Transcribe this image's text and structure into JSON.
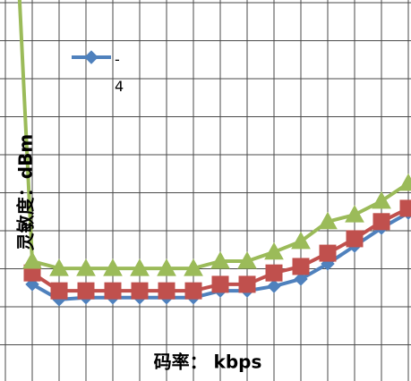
{
  "chart_data": {
    "type": "line",
    "x_label": "码率： kbps",
    "y_label": "灵敏度：dBm",
    "x": [
      0.5,
      1,
      2,
      3,
      4,
      5,
      6,
      7,
      8,
      9,
      10,
      11,
      12,
      13,
      14,
      15
    ],
    "xlim": [
      0,
      15.1
    ],
    "xticks": [
      0,
      1,
      2,
      3,
      4,
      5,
      6,
      7,
      8,
      9,
      10,
      11,
      12,
      13,
      14,
      15
    ],
    "ylim": [
      0,
      10
    ],
    "yticks": [
      0,
      1,
      2,
      3,
      4,
      5,
      6,
      7,
      8,
      9,
      10
    ],
    "grid": true,
    "series": [
      {
        "name": "-4",
        "color": "#4f81bd",
        "marker": "diamond",
        "values": [
          null,
          2.59,
          2.19,
          2.24,
          2.24,
          2.24,
          2.24,
          2.24,
          2.42,
          2.42,
          2.54,
          2.73,
          3.13,
          3.6,
          4.07,
          4.47
        ]
      },
      {
        "color": "#c0504d",
        "marker": "square",
        "values": [
          null,
          2.89,
          2.42,
          2.42,
          2.42,
          2.42,
          2.42,
          2.42,
          2.59,
          2.59,
          2.89,
          3.06,
          3.41,
          3.79,
          4.24,
          4.59
        ]
      },
      {
        "color": "#9bbb59",
        "marker": "triangle",
        "values": [
          10.5,
          3.2,
          3.01,
          3.01,
          3.01,
          3.01,
          3.01,
          3.01,
          3.2,
          3.2,
          3.44,
          3.72,
          4.24,
          4.42,
          4.78,
          5.25
        ]
      }
    ]
  }
}
